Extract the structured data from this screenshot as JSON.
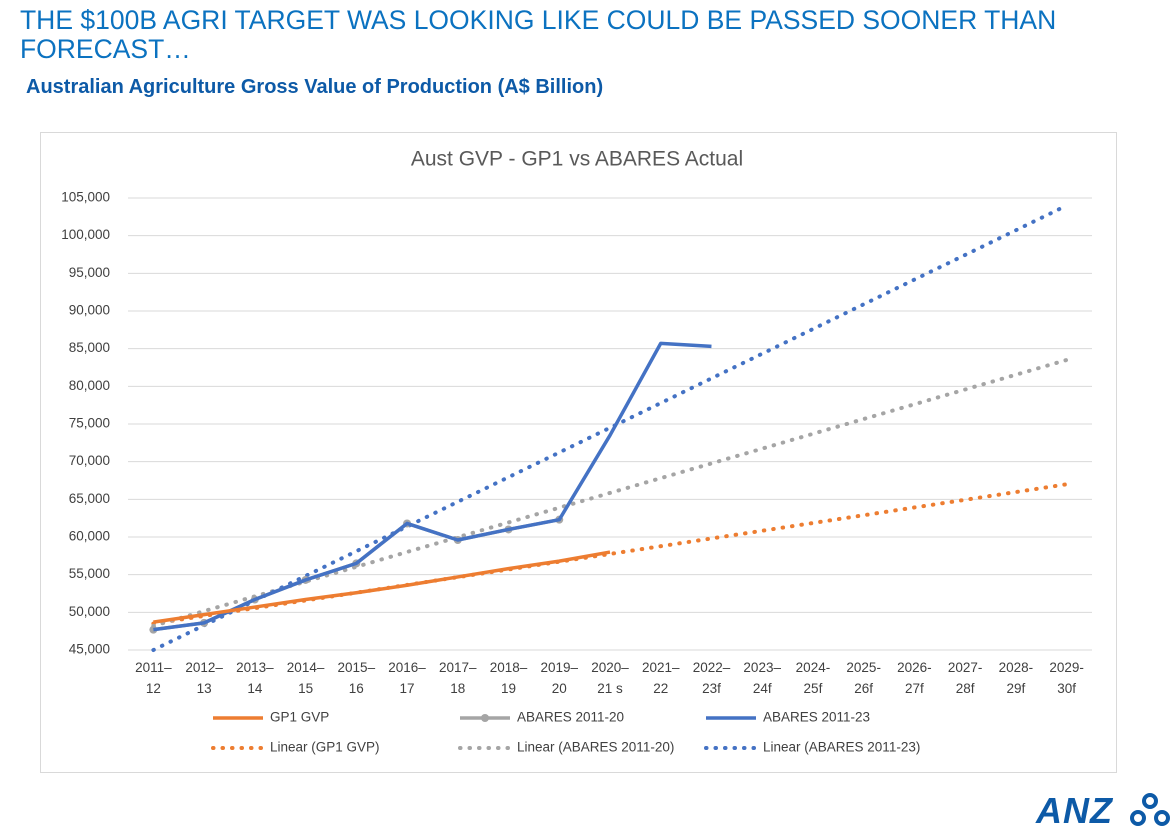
{
  "slide": {
    "title": "THE $100B AGRI TARGET WAS LOOKING LIKE COULD BE PASSED SOONER THAN FORECAST…",
    "subtitle": "Australian Agriculture Gross Value of Production (A$ Billion)",
    "logo": "ANZ"
  },
  "chart_data": {
    "type": "line",
    "title": "Aust GVP - GP1 vs ABARES Actual",
    "categories": [
      "2011–12",
      "2012–13",
      "2013–14",
      "2014–15",
      "2015–16",
      "2016–17",
      "2017–18",
      "2018–19",
      "2019–20",
      "2020–21 s",
      "2021–22",
      "2022–23f",
      "2023–24f",
      "2024-25f",
      "2025-26f",
      "2026-27f",
      "2027-28f",
      "2028-29f",
      "2029-30f"
    ],
    "series": [
      {
        "name": "GP1 GVP",
        "color": "#ed7d31",
        "style": "solid",
        "values": [
          48700,
          49700,
          50700,
          51700,
          52600,
          53600,
          54700,
          55800,
          56800,
          58000,
          null,
          null,
          null,
          null,
          null,
          null,
          null,
          null,
          null
        ]
      },
      {
        "name": "ABARES 2011-20",
        "color": "#a5a5a5",
        "style": "solid",
        "marker": true,
        "values": [
          47700,
          48600,
          51700,
          54300,
          56500,
          61800,
          59600,
          61000,
          62300,
          null,
          null,
          null,
          null,
          null,
          null,
          null,
          null,
          null,
          null
        ]
      },
      {
        "name": "ABARES 2011-23",
        "color": "#4472c4",
        "style": "solid",
        "values": [
          47700,
          48600,
          51700,
          54300,
          56500,
          61800,
          59600,
          61000,
          62300,
          73500,
          85700,
          85300,
          null,
          null,
          null,
          null,
          null,
          null,
          null
        ]
      },
      {
        "name": "Linear (GP1 GVP)",
        "color": "#ed7d31",
        "style": "dotted",
        "values": [
          48500,
          49530,
          50560,
          51580,
          52610,
          53640,
          54670,
          55690,
          56720,
          57750,
          58780,
          59810,
          60830,
          61860,
          62890,
          63920,
          64940,
          65970,
          67000
        ]
      },
      {
        "name": "Linear (ABARES 2011-20)",
        "color": "#a5a5a5",
        "style": "dotted",
        "values": [
          48200,
          50160,
          52120,
          54080,
          56040,
          58010,
          59970,
          61930,
          63890,
          65850,
          67810,
          69770,
          71730,
          73700,
          75660,
          77620,
          79580,
          81540,
          83500
        ]
      },
      {
        "name": "Linear (ABARES 2011-23)",
        "color": "#4472c4",
        "style": "dotted",
        "values": [
          45000,
          48280,
          51560,
          54830,
          58110,
          61390,
          64670,
          67940,
          71220,
          74500,
          77780,
          81060,
          84330,
          87610,
          90890,
          94170,
          97440,
          100720,
          104000
        ]
      }
    ],
    "ylim": [
      45000,
      105000
    ],
    "yticks": [
      {
        "value": 45000,
        "label": "45,000"
      },
      {
        "value": 50000,
        "label": "50,000"
      },
      {
        "value": 55000,
        "label": "55,000"
      },
      {
        "value": 60000,
        "label": "60,000"
      },
      {
        "value": 65000,
        "label": "65,000"
      },
      {
        "value": 70000,
        "label": "70,000"
      },
      {
        "value": 75000,
        "label": "75,000"
      },
      {
        "value": 80000,
        "label": "80,000"
      },
      {
        "value": 85000,
        "label": "85,000"
      },
      {
        "value": 90000,
        "label": "90,000"
      },
      {
        "value": 95000,
        "label": "95,000"
      },
      {
        "value": 100000,
        "label": "100,000"
      },
      {
        "value": 105000,
        "label": "105,000"
      }
    ],
    "grid": true,
    "legend": "bottom"
  }
}
